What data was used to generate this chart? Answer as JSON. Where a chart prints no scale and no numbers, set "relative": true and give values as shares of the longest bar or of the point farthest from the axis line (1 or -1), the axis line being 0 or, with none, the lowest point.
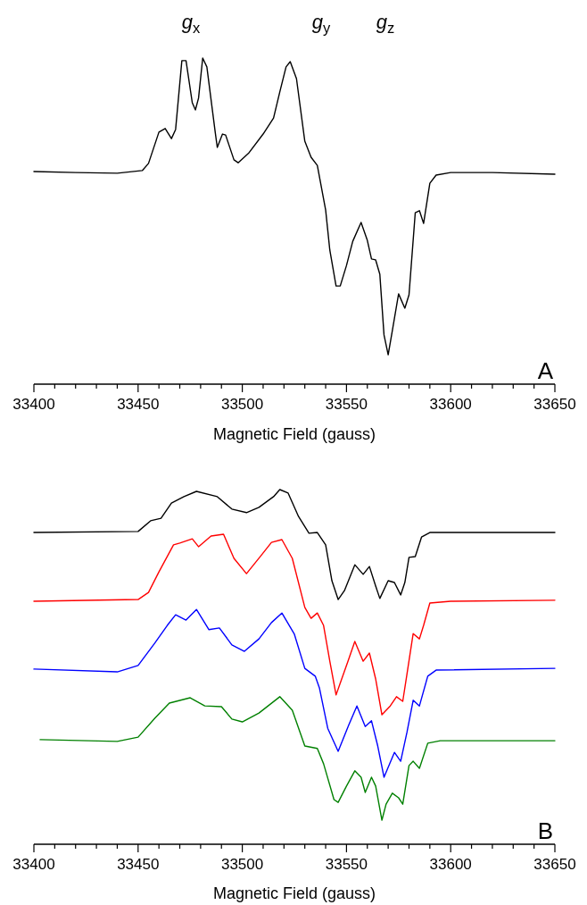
{
  "chart_data": [
    {
      "type": "line",
      "relative": true,
      "xlabel": "Magnetic Field (gauss)",
      "xlim": [
        33400,
        33650
      ],
      "xticks": [
        33400,
        {
          "value": 33410,
          "label": null
        },
        {
          "value": 33420,
          "label": null
        },
        {
          "value": 33430,
          "label": null
        },
        {
          "value": 33440,
          "label": null
        },
        33450,
        {
          "value": 33460,
          "label": null
        },
        {
          "value": 33470,
          "label": null
        },
        {
          "value": 33480,
          "label": null
        },
        {
          "value": 33490,
          "label": null
        },
        33500,
        {
          "value": 33510,
          "label": null
        },
        {
          "value": 33520,
          "label": null
        },
        {
          "value": 33530,
          "label": null
        },
        {
          "value": 33540,
          "label": null
        },
        33550,
        {
          "value": 33560,
          "label": null
        },
        {
          "value": 33570,
          "label": null
        },
        {
          "value": 33580,
          "label": null
        },
        {
          "value": 33590,
          "label": null
        },
        33600,
        {
          "value": 33610,
          "label": null
        },
        {
          "value": 33620,
          "label": null
        },
        {
          "value": 33630,
          "label": null
        },
        {
          "value": 33640,
          "label": null
        },
        33650
      ],
      "annotations": [
        "g$_{x}$",
        "g$_{y}$",
        "g$_{z}$",
        "A"
      ],
      "series": [
        {
          "color": "#000000",
          "x": [
            33400,
            33420,
            33440,
            33452,
            33455,
            33460,
            33463,
            33466,
            33468,
            33471,
            33473,
            33476,
            33477.5,
            33479,
            33481,
            33483,
            33487,
            33488,
            33490.5,
            33492,
            33496,
            33498,
            33503,
            33510,
            33515,
            33518,
            33521,
            33523,
            33526,
            33530,
            33533,
            33536,
            33540,
            33542,
            33545,
            33547,
            33550,
            33553,
            33557,
            33560,
            33562,
            33564,
            33566,
            33568,
            33570,
            33572,
            33575,
            33578,
            33580,
            33583,
            33585,
            33587,
            33590,
            33593,
            33600,
            33620,
            33650
          ],
          "values": [
            0.652,
            0.649,
            0.647,
            0.655,
            0.677,
            0.773,
            0.784,
            0.753,
            0.781,
            0.992,
            0.992,
            0.863,
            0.841,
            0.877,
            1.0,
            0.973,
            0.773,
            0.726,
            0.767,
            0.764,
            0.688,
            0.679,
            0.708,
            0.767,
            0.816,
            0.896,
            0.973,
            0.989,
            0.937,
            0.745,
            0.696,
            0.671,
            0.534,
            0.411,
            0.301,
            0.301,
            0.364,
            0.438,
            0.496,
            0.441,
            0.384,
            0.381,
            0.337,
            0.151,
            0.09,
            0.164,
            0.277,
            0.233,
            0.274,
            0.526,
            0.532,
            0.493,
            0.616,
            0.641,
            0.649,
            0.649,
            0.644
          ]
        }
      ]
    },
    {
      "type": "line",
      "relative": true,
      "xlabel": "Magnetic Field (gauss)",
      "xlim": [
        33400,
        33650
      ],
      "xticks": [
        33400,
        {
          "value": 33410,
          "label": null
        },
        {
          "value": 33420,
          "label": null
        },
        {
          "value": 33430,
          "label": null
        },
        {
          "value": 33440,
          "label": null
        },
        33450,
        {
          "value": 33460,
          "label": null
        },
        {
          "value": 33470,
          "label": null
        },
        {
          "value": 33480,
          "label": null
        },
        {
          "value": 33490,
          "label": null
        },
        33500,
        {
          "value": 33510,
          "label": null
        },
        {
          "value": 33520,
          "label": null
        },
        {
          "value": 33530,
          "label": null
        },
        {
          "value": 33540,
          "label": null
        },
        33550,
        {
          "value": 33560,
          "label": null
        },
        {
          "value": 33570,
          "label": null
        },
        {
          "value": 33580,
          "label": null
        },
        {
          "value": 33590,
          "label": null
        },
        33600,
        {
          "value": 33610,
          "label": null
        },
        {
          "value": 33620,
          "label": null
        },
        {
          "value": 33630,
          "label": null
        },
        {
          "value": 33640,
          "label": null
        },
        33650
      ],
      "annotations": [
        "B"
      ],
      "series": [
        {
          "color": "#000000",
          "x": [
            33400,
            33450,
            33456,
            33461,
            33466,
            33472,
            33478,
            33488,
            33495,
            33502,
            33508,
            33515,
            33518,
            33522,
            33527,
            33532,
            33536,
            33540,
            33543,
            33546,
            33549,
            33554,
            33558,
            33561,
            33564,
            33566,
            33570,
            33573,
            33576,
            33578,
            33580,
            33583,
            33586,
            33590,
            33650
          ],
          "values": [
            0.879,
            0.882,
            0.912,
            0.919,
            0.962,
            0.98,
            0.995,
            0.98,
            0.945,
            0.935,
            0.95,
            0.98,
            1.0,
            0.99,
            0.924,
            0.877,
            0.879,
            0.844,
            0.743,
            0.69,
            0.715,
            0.788,
            0.761,
            0.783,
            0.728,
            0.693,
            0.743,
            0.738,
            0.703,
            0.738,
            0.809,
            0.811,
            0.866,
            0.879,
            0.879
          ]
        },
        {
          "color": "#ff0000",
          "x": [
            33400,
            33450,
            33455,
            33460,
            33467,
            33470,
            33476,
            33479,
            33485,
            33491,
            33496,
            33502,
            33509,
            33514,
            33519,
            33524,
            33530,
            33533,
            33536,
            33539,
            33542,
            33545,
            33551,
            33554,
            33558,
            33561,
            33564,
            33567,
            33571,
            33574,
            33577,
            33579,
            33582,
            33585,
            33587,
            33590,
            33600,
            33650
          ],
          "values": [
            0.685,
            0.69,
            0.71,
            0.768,
            0.844,
            0.849,
            0.861,
            0.839,
            0.869,
            0.874,
            0.806,
            0.763,
            0.814,
            0.851,
            0.859,
            0.806,
            0.668,
            0.637,
            0.652,
            0.617,
            0.516,
            0.421,
            0.521,
            0.572,
            0.516,
            0.539,
            0.466,
            0.365,
            0.39,
            0.416,
            0.403,
            0.479,
            0.594,
            0.579,
            0.617,
            0.68,
            0.685,
            0.688
          ]
        },
        {
          "color": "#0000ff",
          "x": [
            33400,
            33440,
            33450,
            33458,
            33464,
            33468,
            33473,
            33478,
            33484,
            33489,
            33495,
            33501,
            33508,
            33514,
            33519,
            33525,
            33530,
            33535,
            33537,
            33541,
            33546,
            33551,
            33555,
            33559,
            33562,
            33565,
            33568,
            33573,
            33576,
            33579,
            33582,
            33585,
            33589,
            33593,
            33650
          ],
          "values": [
            0.494,
            0.486,
            0.504,
            0.567,
            0.617,
            0.647,
            0.632,
            0.662,
            0.605,
            0.61,
            0.562,
            0.544,
            0.579,
            0.625,
            0.652,
            0.592,
            0.496,
            0.474,
            0.441,
            0.327,
            0.262,
            0.335,
            0.39,
            0.332,
            0.348,
            0.277,
            0.189,
            0.259,
            0.234,
            0.315,
            0.406,
            0.39,
            0.474,
            0.491,
            0.496
          ]
        },
        {
          "color": "#008000",
          "x": [
            33403,
            33440,
            33450,
            33458,
            33465,
            33475,
            33482,
            33490,
            33495,
            33500,
            33508,
            33518,
            33524,
            33530,
            33536,
            33539,
            33544,
            33546,
            33550,
            33554,
            33557,
            33559,
            33562,
            33564,
            33567,
            33569,
            33572,
            33575,
            33577,
            33580,
            33582,
            33585,
            33589,
            33595,
            33650
          ],
          "values": [
            0.295,
            0.29,
            0.302,
            0.355,
            0.398,
            0.413,
            0.39,
            0.388,
            0.353,
            0.345,
            0.37,
            0.416,
            0.378,
            0.277,
            0.27,
            0.227,
            0.126,
            0.118,
            0.164,
            0.207,
            0.189,
            0.146,
            0.189,
            0.164,
            0.068,
            0.113,
            0.144,
            0.131,
            0.113,
            0.222,
            0.234,
            0.214,
            0.285,
            0.292,
            0.292
          ]
        }
      ]
    }
  ]
}
